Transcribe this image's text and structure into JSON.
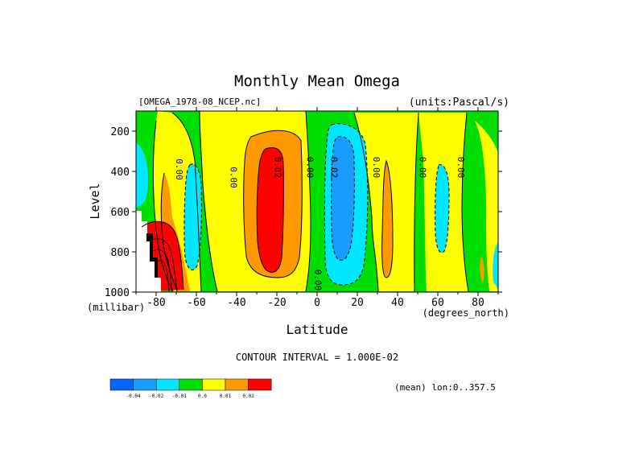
{
  "chart_data": {
    "type": "heatmap",
    "title": "Monthly Mean Omega",
    "source_label": "[OMEGA_1978-08_NCEP.nc]",
    "units_label": "(units:Pascal/s)",
    "xlabel": "Latitude",
    "x_unit_label": "(degrees_north)",
    "ylabel": "Level",
    "y_unit_label": "(millibar)",
    "xlim": [
      -90,
      90
    ],
    "ylim": [
      1000,
      100
    ],
    "x_ticks": [
      -80,
      -60,
      -40,
      -20,
      0,
      20,
      40,
      60,
      80
    ],
    "x_tick_labels": [
      "-80",
      "-60",
      "-40",
      "-20",
      "0",
      "20",
      "40",
      "60",
      "80"
    ],
    "y_ticks": [
      200,
      400,
      600,
      800,
      1000
    ],
    "y_tick_labels": [
      "200",
      "400",
      "600",
      "800",
      "1000"
    ],
    "contour_interval": "CONTOUR INTERVAL = 1.000E-02",
    "mean_note": "(mean) lon:0..357.5",
    "contour_labels": [
      {
        "text": "0.00",
        "lat": -70,
        "lev": 390
      },
      {
        "text": "0.00",
        "lat": -43,
        "lev": 430
      },
      {
        "text": "0.02",
        "lat": -21,
        "lev": 380
      },
      {
        "text": "0.00",
        "lat": -5,
        "lev": 380
      },
      {
        "text": "0.02",
        "lat": 7,
        "lev": 380
      },
      {
        "text": "0.00",
        "lat": 28,
        "lev": 380
      },
      {
        "text": "0.00",
        "lat": 51,
        "lev": 380
      },
      {
        "text": "0.00",
        "lat": 70,
        "lev": 380
      },
      {
        "text": "0.00",
        "lat": -1,
        "lev": 940
      }
    ],
    "color_scale": {
      "colors": [
        "#0066ff",
        "#1a9cff",
        "#00e6ff",
        "#00dd00",
        "#ffff00",
        "#ff9900",
        "#ff0000"
      ],
      "labels": [
        "-0.04",
        "-0.02",
        "-0.01",
        "0.0",
        "0.01",
        "0.02"
      ]
    },
    "regions": [
      {
        "name": "lower-left red core",
        "value": 0.03,
        "color": "#ff0000",
        "lat": [
          -85,
          -62
        ],
        "lev": [
          650,
          1000
        ]
      },
      {
        "name": "southern subtropics descent",
        "value": 0.02,
        "color": "#ff9900",
        "lat": [
          -35,
          -5
        ],
        "lev": [
          200,
          900
        ]
      },
      {
        "name": "southern subtropics core",
        "value": 0.03,
        "color": "#ff0000",
        "lat": [
          -30,
          -12
        ],
        "lev": [
          250,
          850
        ]
      },
      {
        "name": "tropical ascent",
        "value": -0.02,
        "color": "#00e6ff",
        "lat": [
          2,
          24
        ],
        "lev": [
          150,
          1000
        ]
      },
      {
        "name": "tropical ascent core",
        "value": -0.04,
        "color": "#1a9cff",
        "lat": [
          5,
          22
        ],
        "lev": [
          200,
          900
        ]
      },
      {
        "name": "southern high lat ascent",
        "value": -0.01,
        "color": "#00e6ff",
        "lat": [
          -70,
          -57
        ],
        "lev": [
          350,
          950
        ]
      },
      {
        "name": "mid-lat ascent",
        "value": -0.01,
        "color": "#00e6ff",
        "lat": [
          55,
          67
        ],
        "lev": [
          400,
          900
        ]
      }
    ]
  }
}
